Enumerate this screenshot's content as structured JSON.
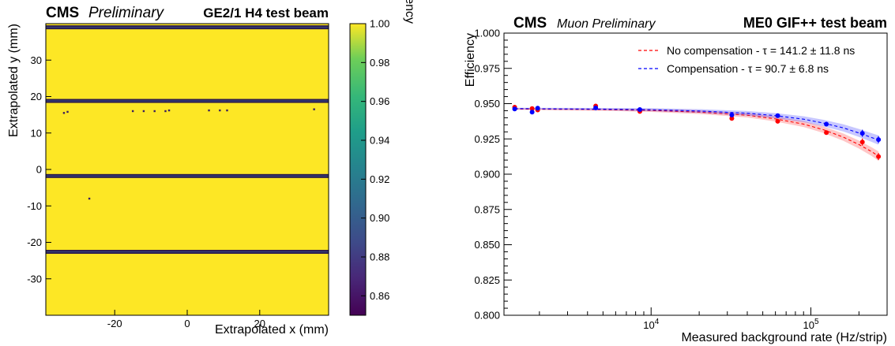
{
  "chart_data": [
    {
      "type": "heatmap",
      "experiment": "CMS",
      "status": "Preliminary",
      "title": "GE2/1 H4 test beam",
      "xlabel": "Extrapolated x (mm)",
      "ylabel": "Extrapolated y (mm)",
      "xlim": [
        -39,
        39
      ],
      "ylim": [
        -40,
        40
      ],
      "xticks": [
        -20,
        0,
        20
      ],
      "yticks": [
        -30,
        -20,
        -10,
        0,
        10,
        20,
        30
      ],
      "colorbar": {
        "label": "Efficiency",
        "range": [
          0.85,
          1.0
        ],
        "ticks": [
          "0.86",
          "0.88",
          "0.90",
          "0.92",
          "0.94",
          "0.96",
          "0.98",
          "1.00"
        ],
        "colormap": "viridis"
      },
      "background_efficiency": 1.0,
      "low_efficiency_bands_y": [
        39.0,
        18.8,
        -1.8,
        -22.6
      ],
      "low_efficiency_points": [
        {
          "x": -34,
          "y": 15.5
        },
        {
          "x": -33,
          "y": 15.8
        },
        {
          "x": -15,
          "y": 16.0
        },
        {
          "x": -12,
          "y": 16.0
        },
        {
          "x": -9,
          "y": 16.0
        },
        {
          "x": -6,
          "y": 16.0
        },
        {
          "x": -5,
          "y": 16.2
        },
        {
          "x": 6,
          "y": 16.2
        },
        {
          "x": 9,
          "y": 16.2
        },
        {
          "x": 11,
          "y": 16.2
        },
        {
          "x": 35,
          "y": 16.5
        },
        {
          "x": -27,
          "y": -8.0
        }
      ]
    },
    {
      "type": "scatter",
      "experiment": "CMS",
      "status": "Muon Preliminary",
      "title": "ME0 GIF++ test beam",
      "xlabel": "Measured background rate (Hz/strip)",
      "ylabel": "Efficiency",
      "xscale": "log",
      "xlim": [
        1200,
        300000
      ],
      "ylim": [
        0.8,
        1.0
      ],
      "xticks": [
        {
          "value": 10000,
          "base": "10",
          "exp": "4"
        },
        {
          "value": 100000,
          "base": "10",
          "exp": "5"
        }
      ],
      "yticks": [
        "0.800",
        "0.825",
        "0.850",
        "0.875",
        "0.900",
        "0.925",
        "0.950",
        "0.975",
        "1.000"
      ],
      "legend_position": "top-right",
      "series": [
        {
          "name": "No compensation - τ = 141.2 ± 11.8 ns",
          "color": "#ff0000",
          "tau_ns": 141.2,
          "points": [
            {
              "x": 1400,
              "y": 0.9475,
              "err": 0.0012
            },
            {
              "x": 1800,
              "y": 0.9465,
              "err": 0.0012
            },
            {
              "x": 1950,
              "y": 0.9455,
              "err": 0.0012
            },
            {
              "x": 4500,
              "y": 0.9483,
              "err": 0.0012
            },
            {
              "x": 8500,
              "y": 0.9445,
              "err": 0.0012
            },
            {
              "x": 32000,
              "y": 0.9395,
              "err": 0.0015
            },
            {
              "x": 62000,
              "y": 0.9375,
              "err": 0.0015
            },
            {
              "x": 125000,
              "y": 0.9295,
              "err": 0.0015
            },
            {
              "x": 210000,
              "y": 0.9228,
              "err": 0.0025
            },
            {
              "x": 265000,
              "y": 0.9125,
              "err": 0.0025
            }
          ],
          "fit": {
            "x": [
              1400,
              5000,
              10000,
              20000,
              40000,
              60000,
              90000,
              120000,
              160000,
              200000,
              240000,
              265000
            ],
            "y": [
              0.9462,
              0.9458,
              0.9452,
              0.944,
              0.9418,
              0.9392,
              0.9355,
              0.9315,
              0.9262,
              0.921,
              0.916,
              0.9128
            ]
          }
        },
        {
          "name": "Compensation - τ = 90.7 ± 6.8 ns",
          "color": "#0000ff",
          "tau_ns": 90.7,
          "points": [
            {
              "x": 1400,
              "y": 0.9462,
              "err": 0.0012
            },
            {
              "x": 1800,
              "y": 0.944,
              "err": 0.0012
            },
            {
              "x": 1950,
              "y": 0.9468,
              "err": 0.0012
            },
            {
              "x": 4500,
              "y": 0.947,
              "err": 0.0012
            },
            {
              "x": 8500,
              "y": 0.9458,
              "err": 0.0012
            },
            {
              "x": 32000,
              "y": 0.942,
              "err": 0.0015
            },
            {
              "x": 62000,
              "y": 0.9415,
              "err": 0.0015
            },
            {
              "x": 125000,
              "y": 0.9355,
              "err": 0.0015
            },
            {
              "x": 210000,
              "y": 0.929,
              "err": 0.0025
            },
            {
              "x": 265000,
              "y": 0.9245,
              "err": 0.0025
            }
          ],
          "fit": {
            "x": [
              1400,
              5000,
              10000,
              20000,
              40000,
              60000,
              90000,
              120000,
              160000,
              200000,
              240000,
              265000
            ],
            "y": [
              0.9465,
              0.9461,
              0.9457,
              0.9448,
              0.9432,
              0.9415,
              0.939,
              0.9362,
              0.9328,
              0.9292,
              0.926,
              0.9242
            ]
          }
        }
      ]
    }
  ]
}
